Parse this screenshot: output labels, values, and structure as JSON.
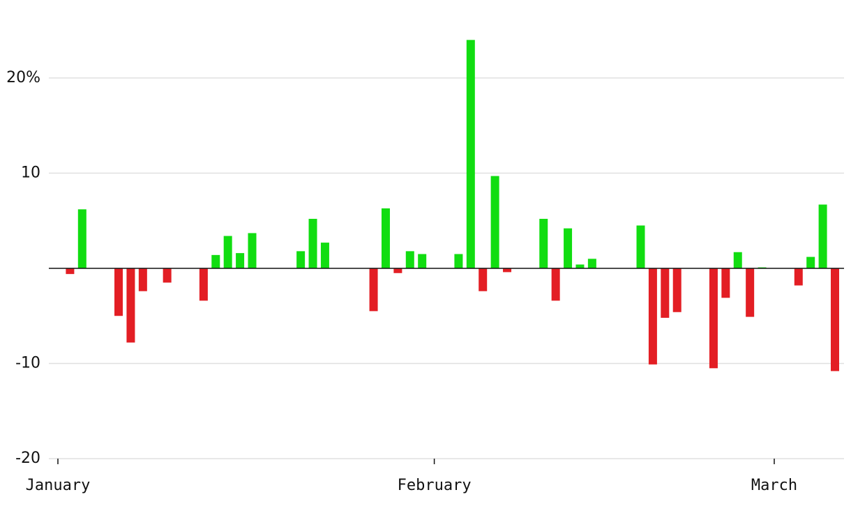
{
  "chart_data": {
    "type": "bar",
    "categories": [
      "January",
      null,
      null,
      null,
      null,
      null,
      null,
      null,
      null,
      null,
      null,
      null,
      null,
      null,
      null,
      null,
      null,
      null,
      null,
      null,
      null,
      null,
      null,
      null,
      null,
      null,
      null,
      null,
      null,
      null,
      null,
      "February",
      null,
      null,
      null,
      null,
      null,
      null,
      null,
      null,
      null,
      null,
      null,
      null,
      null,
      null,
      null,
      null,
      null,
      null,
      null,
      null,
      null,
      null,
      null,
      null,
      null,
      null,
      null,
      "March",
      null,
      null,
      null,
      null,
      null
    ],
    "values": [
      null,
      -0.6,
      6.2,
      null,
      null,
      -5.0,
      -7.8,
      -2.4,
      null,
      -1.5,
      null,
      null,
      -3.4,
      1.4,
      3.4,
      1.6,
      3.7,
      null,
      null,
      null,
      1.8,
      5.2,
      2.7,
      null,
      null,
      null,
      -4.5,
      6.3,
      -0.5,
      1.8,
      1.5,
      null,
      null,
      1.5,
      24.0,
      -2.4,
      9.7,
      -0.4,
      null,
      null,
      5.2,
      -3.4,
      4.2,
      0.4,
      1.0,
      null,
      null,
      null,
      4.5,
      -10.1,
      -5.2,
      -4.6,
      null,
      null,
      -10.5,
      -3.1,
      1.7,
      -5.1,
      0.1,
      null,
      null,
      -1.8,
      1.2,
      6.7,
      -10.8
    ],
    "positive_color": "#11dd11",
    "negative_color": "#e31e24",
    "ylim": [
      -20,
      26
    ],
    "yticks": [
      -20,
      -10,
      10,
      {
        "value": 20,
        "label": "20%"
      }
    ],
    "grid": true
  }
}
